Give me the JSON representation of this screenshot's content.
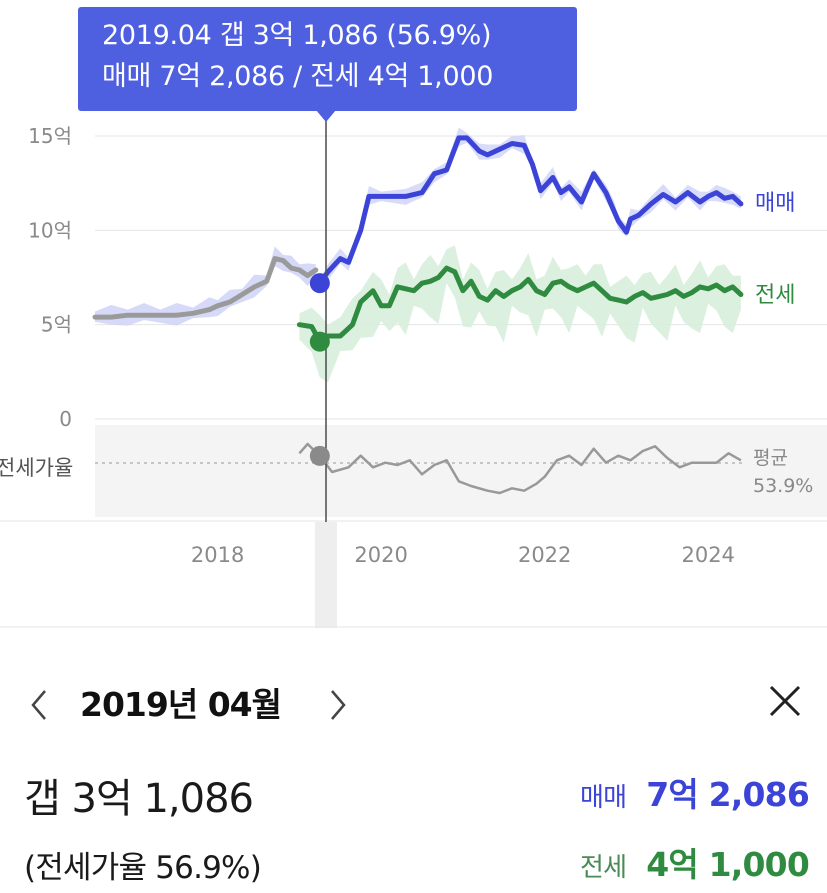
{
  "tooltip": {
    "line1": "2019.04  갭 3억 1,086 (56.9%)",
    "line2": "매매 7억 2,086 / 전세 4억 1,000"
  },
  "chart_data": {
    "type": "line",
    "y_ticks": [
      "15억",
      "10억",
      "5억",
      "0"
    ],
    "x_ticks": [
      {
        "label": "2018",
        "year": 2018
      },
      {
        "label": "2020",
        "year": 2020
      },
      {
        "label": "2022",
        "year": 2022
      },
      {
        "label": "2024",
        "year": 2024
      }
    ],
    "ylim": [
      0,
      15
    ],
    "y_unit": "억",
    "xlim": [
      2016.5,
      2024.45
    ],
    "selected_x": 2019.25,
    "colors": {
      "sale": "#3b44d6",
      "jeonse": "#2e8b3f",
      "ratio": "#999999",
      "history": "#9a9a9a",
      "tooltip": "#4e5fe0"
    },
    "series": [
      {
        "key": "sale_history",
        "x": [
          2016.5,
          2016.7,
          2016.9,
          2017.1,
          2017.3,
          2017.5,
          2017.7,
          2017.9,
          2018.0,
          2018.15,
          2018.3,
          2018.45,
          2018.6,
          2018.7,
          2018.8,
          2018.9,
          2019.0,
          2019.1,
          2019.2
        ],
        "y": [
          5.4,
          5.4,
          5.5,
          5.5,
          5.5,
          5.5,
          5.6,
          5.8,
          6.0,
          6.2,
          6.6,
          7.0,
          7.3,
          8.5,
          8.4,
          8.0,
          7.9,
          7.6,
          7.9
        ]
      },
      {
        "name": "매매",
        "key": "sale",
        "x": [
          2019.25,
          2019.35,
          2019.5,
          2019.6,
          2019.75,
          2019.85,
          2020.0,
          2020.3,
          2020.5,
          2020.65,
          2020.8,
          2020.95,
          2021.05,
          2021.2,
          2021.3,
          2021.45,
          2021.6,
          2021.75,
          2021.85,
          2021.95,
          2022.1,
          2022.2,
          2022.3,
          2022.45,
          2022.6,
          2022.75,
          2022.85,
          2022.9,
          2023.0,
          2023.05,
          2023.15,
          2023.3,
          2023.45,
          2023.6,
          2023.75,
          2023.9,
          2024.0,
          2024.1,
          2024.2,
          2024.3,
          2024.4
        ],
        "y": [
          7.2,
          7.8,
          8.5,
          8.3,
          10.0,
          11.8,
          11.8,
          11.8,
          12.0,
          13.0,
          13.2,
          14.9,
          14.9,
          14.2,
          14.0,
          14.3,
          14.6,
          14.5,
          13.5,
          12.1,
          12.8,
          12.0,
          12.3,
          11.5,
          13.0,
          12.0,
          11.0,
          10.5,
          9.9,
          10.6,
          10.8,
          11.4,
          11.9,
          11.5,
          12.0,
          11.5,
          11.8,
          12.0,
          11.7,
          11.8,
          11.4
        ]
      },
      {
        "name": "전세",
        "key": "jeonse",
        "x": [
          2019.0,
          2019.15,
          2019.25,
          2019.35,
          2019.5,
          2019.65,
          2019.75,
          2019.9,
          2020.0,
          2020.1,
          2020.2,
          2020.3,
          2020.4,
          2020.5,
          2020.6,
          2020.7,
          2020.8,
          2020.9,
          2021.0,
          2021.1,
          2021.2,
          2021.3,
          2021.4,
          2021.5,
          2021.6,
          2021.7,
          2021.8,
          2021.9,
          2022.0,
          2022.1,
          2022.2,
          2022.3,
          2022.4,
          2022.5,
          2022.6,
          2022.7,
          2022.8,
          2022.9,
          2023.0,
          2023.1,
          2023.2,
          2023.3,
          2023.4,
          2023.5,
          2023.6,
          2023.7,
          2023.8,
          2023.9,
          2024.0,
          2024.1,
          2024.2,
          2024.3,
          2024.4
        ],
        "y": [
          5.0,
          4.9,
          4.1,
          4.4,
          4.4,
          5.0,
          6.2,
          6.8,
          6.0,
          6.0,
          7.0,
          6.9,
          6.8,
          7.2,
          7.3,
          7.5,
          8.0,
          7.8,
          6.8,
          7.3,
          6.5,
          6.3,
          6.8,
          6.5,
          6.8,
          7.0,
          7.4,
          6.8,
          6.6,
          7.2,
          7.3,
          7.0,
          6.8,
          7.0,
          7.2,
          6.8,
          6.4,
          6.3,
          6.2,
          6.5,
          6.7,
          6.4,
          6.5,
          6.6,
          6.8,
          6.5,
          6.7,
          7.0,
          6.9,
          7.1,
          6.8,
          7.0,
          6.6
        ]
      },
      {
        "name": "전세가율",
        "key": "ratio",
        "x": [
          2019.0,
          2019.1,
          2019.25,
          2019.4,
          2019.6,
          2019.75,
          2019.9,
          2020.05,
          2020.2,
          2020.35,
          2020.5,
          2020.65,
          2020.8,
          2020.95,
          2021.1,
          2021.3,
          2021.45,
          2021.6,
          2021.75,
          2021.9,
          2022.0,
          2022.15,
          2022.3,
          2022.45,
          2022.6,
          2022.75,
          2022.9,
          2023.05,
          2023.2,
          2023.35,
          2023.5,
          2023.65,
          2023.8,
          2023.95,
          2024.1,
          2024.25,
          2024.4
        ],
        "y": [
          58,
          62,
          56.9,
          50,
          52,
          57,
          52,
          54,
          53,
          55,
          49,
          53,
          55,
          46,
          44,
          42,
          41,
          43,
          42,
          45,
          48,
          55,
          57,
          53,
          60,
          54,
          57,
          55,
          59,
          61,
          56,
          52,
          54,
          54,
          54,
          58,
          55
        ]
      }
    ],
    "ratio_average": {
      "label": "평균",
      "value": "53.9%",
      "y": 53.9
    },
    "ratio_label": "전세가율",
    "ratio_ylim": [
      38,
      68
    ]
  },
  "panel": {
    "prev": "‹",
    "next": "›",
    "period": "2019년 04월",
    "close": "✕",
    "gap_main": "갭 3억 1,086",
    "gap_ratio": "(전세가율 56.9%)",
    "sale_label": "매매",
    "sale_value": "7억 2,086",
    "jeonse_label": "전세",
    "jeonse_value": "4억 1,000"
  }
}
